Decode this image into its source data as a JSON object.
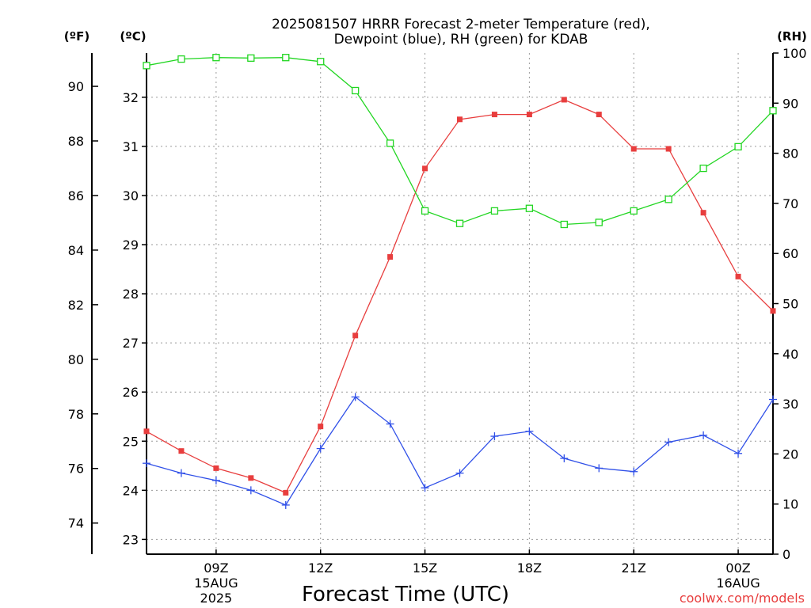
{
  "chart_data": {
    "type": "line",
    "title_lines": [
      "2025081507 HRRR Forecast 2-meter Temperature (red),",
      "Dewpoint (blue), RH (green) for KDAB"
    ],
    "xlabel": "Forecast Time (UTC)",
    "credit": "coolwx.com/models",
    "units": {
      "fahrenheit": "(ºF)",
      "celsius": "(ºC)",
      "rh": "(RH)"
    },
    "x_hours_utc": [
      7,
      8,
      9,
      10,
      11,
      12,
      13,
      14,
      15,
      16,
      17,
      18,
      19,
      20,
      21,
      22,
      23,
      24,
      25
    ],
    "x_ticks": [
      {
        "hour": 9,
        "label": "09Z",
        "sub1": "15AUG",
        "sub2": "2025"
      },
      {
        "hour": 12,
        "label": "12Z",
        "sub1": "",
        "sub2": ""
      },
      {
        "hour": 15,
        "label": "15Z",
        "sub1": "",
        "sub2": ""
      },
      {
        "hour": 18,
        "label": "18Z",
        "sub1": "",
        "sub2": ""
      },
      {
        "hour": 21,
        "label": "21Z",
        "sub1": "",
        "sub2": ""
      },
      {
        "hour": 24,
        "label": "00Z",
        "sub1": "16AUG",
        "sub2": ""
      }
    ],
    "celsius_ticks": [
      "23",
      "24",
      "25",
      "26",
      "27",
      "28",
      "29",
      "30",
      "31",
      "32"
    ],
    "fahrenheit_ticks": [
      "74",
      "76",
      "78",
      "80",
      "82",
      "84",
      "86",
      "88",
      "90"
    ],
    "rh_ticks": [
      "0",
      "10",
      "20",
      "30",
      "40",
      "50",
      "60",
      "70",
      "80",
      "90",
      "100"
    ],
    "ylim_celsius": [
      22.7,
      32.9
    ],
    "ylim_rh": [
      0,
      100
    ],
    "grid": true,
    "series": [
      {
        "name": "Temperature",
        "unit": "C",
        "color": "#e83e3e",
        "marker": "filled-square",
        "values": [
          25.2,
          24.8,
          24.45,
          24.25,
          23.95,
          25.3,
          27.15,
          28.75,
          30.55,
          31.55,
          31.65,
          31.65,
          31.95,
          31.65,
          30.95,
          30.95,
          29.65,
          28.35,
          27.65
        ]
      },
      {
        "name": "Dewpoint",
        "unit": "C",
        "color": "#3050e8",
        "marker": "plus",
        "values": [
          24.55,
          24.35,
          24.2,
          24.0,
          23.7,
          24.85,
          25.9,
          25.35,
          24.05,
          24.35,
          25.1,
          25.2,
          24.65,
          24.45,
          24.38,
          24.98,
          25.12,
          24.75,
          25.85
        ]
      },
      {
        "name": "RH",
        "unit": "%",
        "color": "#22d622",
        "marker": "open-square",
        "values": [
          97.5,
          98.8,
          99.1,
          99.0,
          99.1,
          98.3,
          92.5,
          82.0,
          68.5,
          66.0,
          68.5,
          69.0,
          65.8,
          66.2,
          68.5,
          70.8,
          77.0,
          81.3,
          88.5
        ]
      }
    ]
  }
}
